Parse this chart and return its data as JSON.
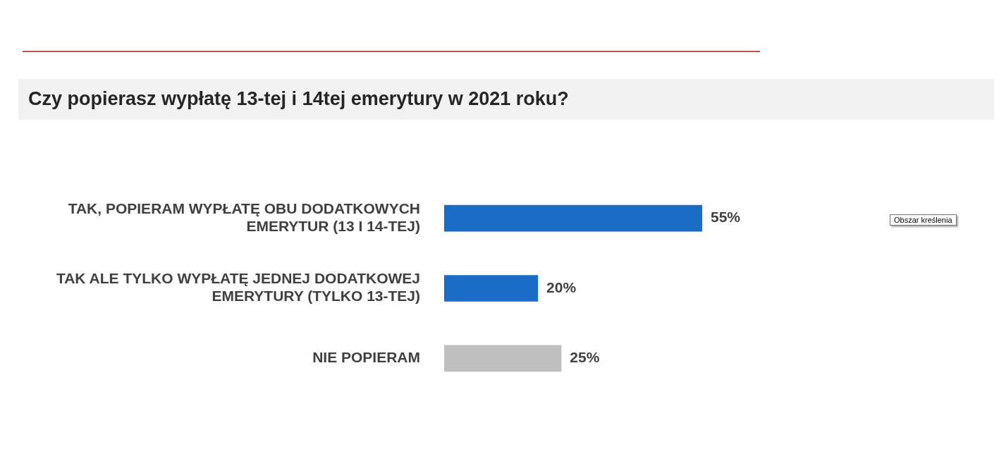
{
  "chart_data": {
    "type": "bar",
    "orientation": "horizontal",
    "title": "Czy popierasz wypłatę 13-tej i 14tej emerytury w 2021 roku?",
    "categories": [
      "TAK, POPIERAM WYPŁATĘ OBU DODATKOWYCH EMERYTUR (13 I 14-TEJ)",
      "TAK ALE TYLKO WYPŁATĘ JEDNEJ DODATKOWEJ EMERYTURY (TYLKO 13-TEJ)",
      "NIE POPIERAM"
    ],
    "values": [
      55,
      20,
      25
    ],
    "colors": [
      "#1a6cc4",
      "#1a6cc4",
      "#bfbfbf"
    ],
    "value_labels": [
      "55%",
      "20%",
      "25%"
    ],
    "legend": false,
    "annotations": [
      "Obszar kreślenia"
    ]
  }
}
